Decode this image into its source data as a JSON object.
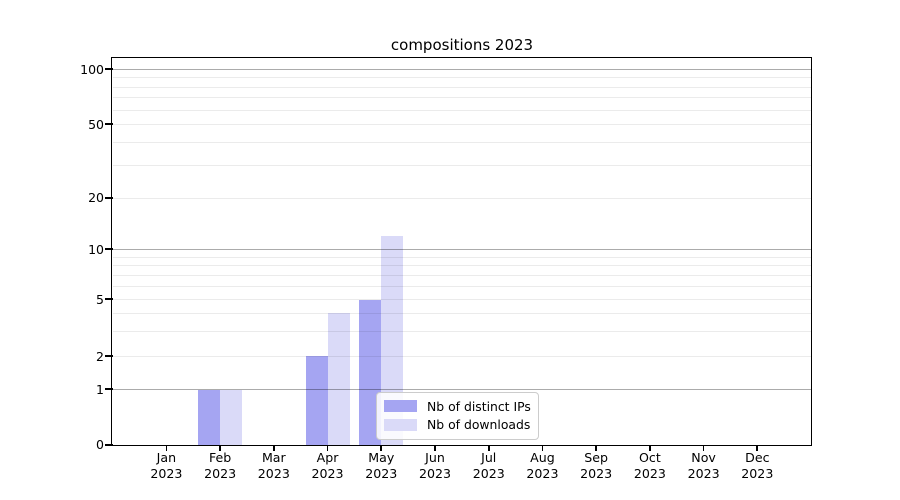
{
  "chart_data": {
    "type": "bar",
    "title": "compositions 2023",
    "categories": [
      "Jan 2023",
      "Feb 2023",
      "Mar 2023",
      "Apr 2023",
      "May 2023",
      "Jun 2023",
      "Jul 2023",
      "Aug 2023",
      "Sep 2023",
      "Oct 2023",
      "Nov 2023",
      "Dec 2023"
    ],
    "series": [
      {
        "name": "Nb of distinct IPs",
        "color": "#a5a5f2",
        "values": [
          0,
          1,
          0,
          2,
          5,
          0,
          0,
          0,
          0,
          0,
          0,
          0
        ]
      },
      {
        "name": "Nb of downloads",
        "color": "#dadaf8",
        "values": [
          0,
          1,
          0,
          4,
          12,
          0,
          0,
          0,
          0,
          0,
          0,
          0
        ]
      }
    ],
    "yticks": [
      0,
      1,
      2,
      5,
      10,
      20,
      50,
      100
    ],
    "ylim": [
      0,
      110
    ],
    "xlabel": "",
    "ylabel": "",
    "scale": "asinh",
    "grid": true,
    "legend_position": "lower center",
    "colors": {
      "background": "#ffffff",
      "axis": "#000000",
      "major_grid": "#b0b0b0",
      "minor_grid": "#ebebeb",
      "legend_border": "#cccccc"
    }
  }
}
